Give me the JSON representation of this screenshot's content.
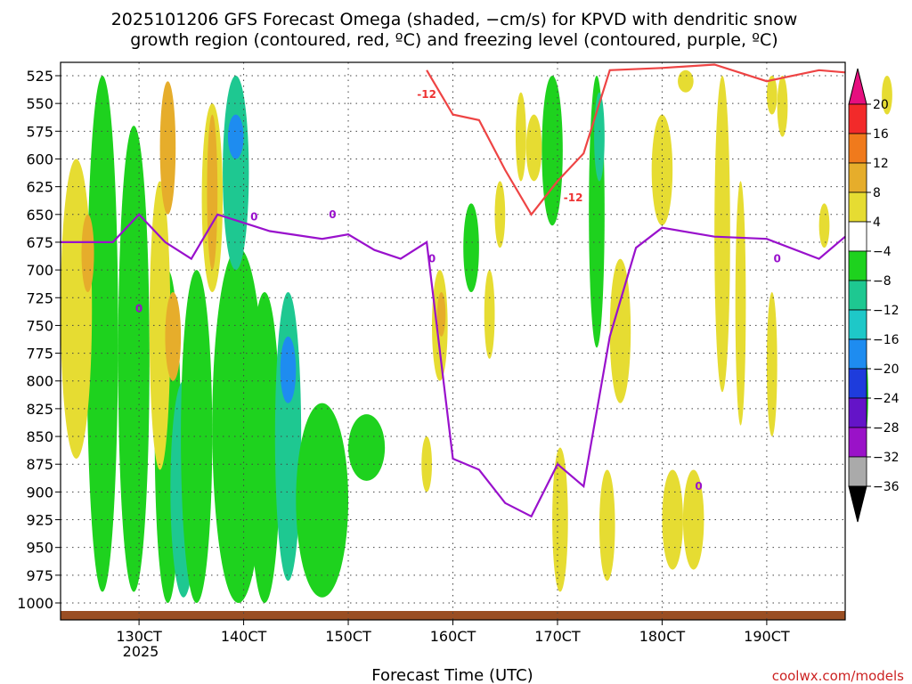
{
  "title_line1": "2025101206 GFS Forecast Omega (shaded, −cm/s) for KPVD with dendritic snow",
  "title_line2": "growth region (contoured, red, ºC) and freezing level (contoured, purple, ºC)",
  "credit": "coolwx.com/models",
  "chart_data": {
    "type": "heatmap",
    "title": "2025101206 GFS Forecast Omega (shaded, −cm/s) for KPVD with dendritic snow growth region (contoured, red, ºC) and freezing level (contoured, purple, ºC)",
    "xlabel": "Forecast Time (UTC)",
    "ylabel": "",
    "x_ticks": [
      "130CT",
      "140CT",
      "150CT",
      "160CT",
      "170CT",
      "180CT",
      "190CT"
    ],
    "x_year_label": "2025",
    "y_ticks": [
      525,
      550,
      575,
      600,
      625,
      650,
      675,
      700,
      725,
      750,
      775,
      800,
      825,
      850,
      875,
      900,
      925,
      950,
      975,
      1000
    ],
    "y_unit": "hPa",
    "y_inverted": true,
    "xlim": [
      "2025-10-12 06Z",
      "2025-10-19 18Z"
    ],
    "ylim": [
      1010,
      515
    ],
    "grid": true,
    "colorbar": {
      "labels": [
        "20",
        "16",
        "12",
        "8",
        "4",
        "−4",
        "−8",
        "−12",
        "−16",
        "−20",
        "−24",
        "−28",
        "−32",
        "−36"
      ],
      "colors": [
        "#e60f7f",
        "#f22a2a",
        "#f07a1c",
        "#e6ad2b",
        "#e6dc32",
        "#ffffff",
        "#1ed21e",
        "#1ec891",
        "#1ec8c8",
        "#1e8cf0",
        "#1e3cdc",
        "#6414c8",
        "#9a12c8",
        "#aaaaaa",
        "#000000"
      ]
    },
    "contours": [
      {
        "name": "dendritic snow growth region",
        "color": "#ee4444",
        "label": "-12",
        "unit": "ºC"
      },
      {
        "name": "freezing level",
        "color": "#9911cc",
        "label": "0",
        "unit": "ºC"
      }
    ],
    "freezing_level_hpa": [
      [
        "2025-10-12 06Z",
        675
      ],
      [
        "2025-10-12 18Z",
        675
      ],
      [
        "2025-10-13 00Z",
        650
      ],
      [
        "2025-10-13 06Z",
        675
      ],
      [
        "2025-10-13 12Z",
        690
      ],
      [
        "2025-10-13 18Z",
        650
      ],
      [
        "2025-10-14 06Z",
        665
      ],
      [
        "2025-10-14 18Z",
        672
      ],
      [
        "2025-10-15 00Z",
        668
      ],
      [
        "2025-10-15 06Z",
        682
      ],
      [
        "2025-10-15 12Z",
        690
      ],
      [
        "2025-10-15 18Z",
        675
      ],
      [
        "2025-10-16 00Z",
        870
      ],
      [
        "2025-10-16 06Z",
        880
      ],
      [
        "2025-10-16 12Z",
        910
      ],
      [
        "2025-10-16 18Z",
        922
      ],
      [
        "2025-10-17 00Z",
        875
      ],
      [
        "2025-10-17 06Z",
        895
      ],
      [
        "2025-10-17 12Z",
        760
      ],
      [
        "2025-10-17 18Z",
        680
      ],
      [
        "2025-10-18 00Z",
        662
      ],
      [
        "2025-10-18 12Z",
        670
      ],
      [
        "2025-10-19 00Z",
        672
      ],
      [
        "2025-10-19 12Z",
        690
      ],
      [
        "2025-10-19 18Z",
        670
      ]
    ],
    "minus12_isotherm_hpa": [
      [
        "2025-10-15 18Z",
        520
      ],
      [
        "2025-10-16 00Z",
        560
      ],
      [
        "2025-10-16 06Z",
        565
      ],
      [
        "2025-10-16 12Z",
        610
      ],
      [
        "2025-10-16 18Z",
        650
      ],
      [
        "2025-10-17 00Z",
        620
      ],
      [
        "2025-10-17 06Z",
        595
      ],
      [
        "2025-10-17 12Z",
        520
      ],
      [
        "2025-10-18 00Z",
        518
      ],
      [
        "2025-10-18 12Z",
        515
      ],
      [
        "2025-10-19 00Z",
        530
      ],
      [
        "2025-10-19 12Z",
        520
      ],
      [
        "2025-10-19 18Z",
        522
      ]
    ]
  }
}
